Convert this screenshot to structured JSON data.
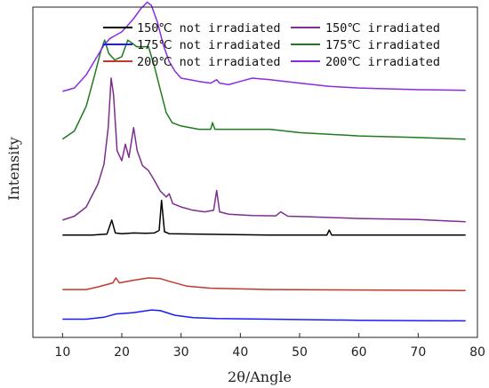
{
  "chart_data": {
    "type": "line",
    "title": "",
    "xlabel": "2θ/Angle",
    "ylabel": "Intensity",
    "xlim": [
      5,
      80
    ],
    "xticks": [
      10,
      20,
      30,
      40,
      50,
      60,
      70,
      80
    ],
    "yticks_shown": false,
    "grid": false,
    "legend_position": "top",
    "legend_columns": 2,
    "series": [
      {
        "name": "150℃ not irradiated",
        "color": "#000000",
        "offset": 0.31,
        "points": [
          [
            10,
            0.0
          ],
          [
            15,
            0.0
          ],
          [
            17.5,
            0.003
          ],
          [
            18.3,
            0.045
          ],
          [
            18.9,
            0.006
          ],
          [
            20,
            0.004
          ],
          [
            22,
            0.006
          ],
          [
            24,
            0.005
          ],
          [
            25.5,
            0.006
          ],
          [
            26.3,
            0.014
          ],
          [
            26.7,
            0.105
          ],
          [
            27.2,
            0.01
          ],
          [
            28,
            0.004
          ],
          [
            35,
            0.002
          ],
          [
            45,
            0.0
          ],
          [
            54.6,
            0.0
          ],
          [
            55,
            0.015
          ],
          [
            55.4,
            0.0
          ],
          [
            65,
            0.0
          ],
          [
            78,
            0.0
          ]
        ]
      },
      {
        "name": "175℃ not irradiated",
        "color": "#1a1aff",
        "offset": 0.055,
        "points": [
          [
            10,
            0.0
          ],
          [
            14,
            0.0
          ],
          [
            17,
            0.006
          ],
          [
            19,
            0.016
          ],
          [
            22,
            0.02
          ],
          [
            25,
            0.028
          ],
          [
            26.5,
            0.026
          ],
          [
            29,
            0.012
          ],
          [
            32,
            0.005
          ],
          [
            36,
            0.002
          ],
          [
            45,
            0.0
          ],
          [
            60,
            -0.003
          ],
          [
            78,
            -0.005
          ]
        ]
      },
      {
        "name": "200℃ not irradiated",
        "color": "#c0392b",
        "offset": 0.145,
        "points": [
          [
            10,
            0.0
          ],
          [
            14,
            0.0
          ],
          [
            16,
            0.008
          ],
          [
            18.5,
            0.02
          ],
          [
            19,
            0.035
          ],
          [
            19.6,
            0.02
          ],
          [
            22,
            0.028
          ],
          [
            24.5,
            0.035
          ],
          [
            26.5,
            0.033
          ],
          [
            28,
            0.025
          ],
          [
            31,
            0.01
          ],
          [
            35,
            0.004
          ],
          [
            45,
            0.0
          ],
          [
            78,
            -0.003
          ]
        ]
      },
      {
        "name": "150℃ irradiated",
        "color": "#7d2e8e",
        "offset": 0.355,
        "points": [
          [
            10,
            0.0
          ],
          [
            12,
            0.012
          ],
          [
            14,
            0.04
          ],
          [
            16,
            0.11
          ],
          [
            17,
            0.17
          ],
          [
            17.7,
            0.28
          ],
          [
            18.2,
            0.43
          ],
          [
            18.6,
            0.38
          ],
          [
            19.2,
            0.21
          ],
          [
            20,
            0.18
          ],
          [
            20.6,
            0.23
          ],
          [
            21.2,
            0.19
          ],
          [
            22,
            0.28
          ],
          [
            22.6,
            0.21
          ],
          [
            23.5,
            0.165
          ],
          [
            24.5,
            0.15
          ],
          [
            25.5,
            0.12
          ],
          [
            26.5,
            0.088
          ],
          [
            27.5,
            0.07
          ],
          [
            28,
            0.08
          ],
          [
            28.6,
            0.05
          ],
          [
            30,
            0.04
          ],
          [
            32,
            0.03
          ],
          [
            34,
            0.025
          ],
          [
            35.5,
            0.03
          ],
          [
            36,
            0.09
          ],
          [
            36.5,
            0.025
          ],
          [
            38,
            0.018
          ],
          [
            42,
            0.014
          ],
          [
            46,
            0.013
          ],
          [
            46.8,
            0.025
          ],
          [
            48,
            0.012
          ],
          [
            52,
            0.01
          ],
          [
            60,
            0.005
          ],
          [
            70,
            0.002
          ],
          [
            78,
            -0.005
          ]
        ]
      },
      {
        "name": "175℃ irradiated",
        "color": "#1e7a1e",
        "offset": 0.6,
        "points": [
          [
            10,
            0.0
          ],
          [
            12,
            0.025
          ],
          [
            14,
            0.1
          ],
          [
            15.5,
            0.2
          ],
          [
            16.5,
            0.27
          ],
          [
            17.1,
            0.3
          ],
          [
            17.8,
            0.26
          ],
          [
            18.8,
            0.24
          ],
          [
            20,
            0.25
          ],
          [
            21,
            0.3
          ],
          [
            21.8,
            0.29
          ],
          [
            22.5,
            0.28
          ],
          [
            23.5,
            0.28
          ],
          [
            24.5,
            0.28
          ],
          [
            25.5,
            0.22
          ],
          [
            26.5,
            0.15
          ],
          [
            27.5,
            0.08
          ],
          [
            28.5,
            0.05
          ],
          [
            30,
            0.04
          ],
          [
            33,
            0.03
          ],
          [
            35,
            0.03
          ],
          [
            35.3,
            0.05
          ],
          [
            35.7,
            0.03
          ],
          [
            40,
            0.03
          ],
          [
            45,
            0.03
          ],
          [
            50,
            0.02
          ],
          [
            55,
            0.015
          ],
          [
            60,
            0.01
          ],
          [
            70,
            0.005
          ],
          [
            78,
            0.0
          ]
        ]
      },
      {
        "name": "200℃ irradiated",
        "color": "#8a2be2",
        "offset": 0.745,
        "points": [
          [
            10,
            0.0
          ],
          [
            12,
            0.01
          ],
          [
            14,
            0.05
          ],
          [
            16,
            0.11
          ],
          [
            17,
            0.14
          ],
          [
            18,
            0.16
          ],
          [
            19,
            0.17
          ],
          [
            20,
            0.18
          ],
          [
            21,
            0.2
          ],
          [
            22,
            0.22
          ],
          [
            23.2,
            0.25
          ],
          [
            24.3,
            0.27
          ],
          [
            25,
            0.26
          ],
          [
            26,
            0.21
          ],
          [
            27,
            0.14
          ],
          [
            28,
            0.09
          ],
          [
            29,
            0.06
          ],
          [
            30,
            0.04
          ],
          [
            33,
            0.03
          ],
          [
            35,
            0.025
          ],
          [
            36,
            0.035
          ],
          [
            36.5,
            0.025
          ],
          [
            38,
            0.02
          ],
          [
            40,
            0.03
          ],
          [
            42,
            0.04
          ],
          [
            45,
            0.035
          ],
          [
            50,
            0.025
          ],
          [
            55,
            0.015
          ],
          [
            60,
            0.01
          ],
          [
            70,
            0.005
          ],
          [
            78,
            0.003
          ]
        ]
      }
    ]
  }
}
